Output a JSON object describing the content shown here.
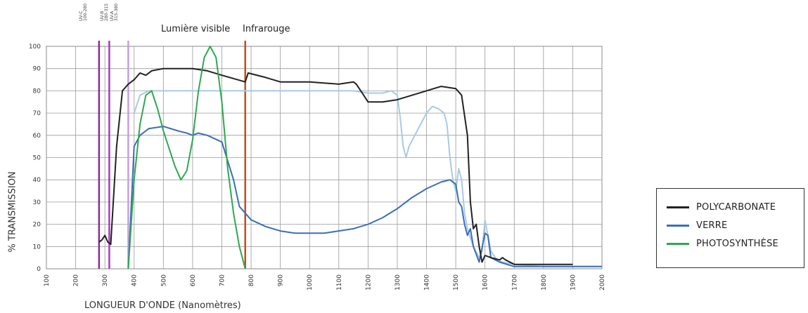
{
  "chart_data": {
    "type": "line",
    "xlabel": "LONGUEUR D'ONDE (Nanomètres)",
    "ylabel": "% TRANSMISSION",
    "xlim": [
      100,
      2000
    ],
    "ylim": [
      0,
      100
    ],
    "x_ticks": [
      100,
      200,
      300,
      400,
      500,
      600,
      700,
      800,
      900,
      1000,
      1100,
      1200,
      1300,
      1400,
      1500,
      1600,
      1700,
      1800,
      1900,
      2000
    ],
    "y_ticks": [
      0,
      10,
      20,
      30,
      40,
      50,
      60,
      70,
      80,
      90,
      100
    ],
    "grid": true,
    "legend_position": "right",
    "annotations": [
      {
        "text": "UV-C",
        "text2": "100-280",
        "x": 280
      },
      {
        "text": "UV-B",
        "text2": "280-315",
        "x": 315
      },
      {
        "text": "UV-A",
        "text2": "315-380",
        "x": 380
      },
      {
        "text": "Lumière visible",
        "x": 560
      },
      {
        "text": "Infrarouge",
        "x": 780
      }
    ],
    "vlines": [
      {
        "x": 280,
        "color": "#8e2a9e"
      },
      {
        "x": 315,
        "color": "#a53dbb"
      },
      {
        "x": 380,
        "color": "#c79de0"
      },
      {
        "x": 780,
        "color": "#c0501c"
      }
    ],
    "series": [
      {
        "name": "POLYCARBONATE",
        "color": "#222222",
        "points": [
          [
            280,
            12
          ],
          [
            290,
            13
          ],
          [
            300,
            15
          ],
          [
            310,
            12
          ],
          [
            320,
            11
          ],
          [
            340,
            55
          ],
          [
            360,
            80
          ],
          [
            380,
            83
          ],
          [
            400,
            85
          ],
          [
            420,
            88
          ],
          [
            440,
            87
          ],
          [
            460,
            89
          ],
          [
            500,
            90
          ],
          [
            600,
            90
          ],
          [
            650,
            89
          ],
          [
            700,
            87
          ],
          [
            780,
            84
          ],
          [
            790,
            88
          ],
          [
            850,
            86
          ],
          [
            900,
            84
          ],
          [
            1000,
            84
          ],
          [
            1100,
            83
          ],
          [
            1150,
            84
          ],
          [
            1160,
            83
          ],
          [
            1180,
            79
          ],
          [
            1200,
            75
          ],
          [
            1250,
            75
          ],
          [
            1300,
            76
          ],
          [
            1400,
            80
          ],
          [
            1450,
            82
          ],
          [
            1500,
            81
          ],
          [
            1520,
            78
          ],
          [
            1540,
            60
          ],
          [
            1550,
            30
          ],
          [
            1560,
            18
          ],
          [
            1570,
            20
          ],
          [
            1580,
            10
          ],
          [
            1590,
            3
          ],
          [
            1600,
            6
          ],
          [
            1620,
            5
          ],
          [
            1650,
            4
          ],
          [
            1660,
            5
          ],
          [
            1670,
            4
          ],
          [
            1700,
            2
          ],
          [
            1800,
            2
          ],
          [
            1900,
            2
          ]
        ]
      },
      {
        "name": "VERRE",
        "color": "#3a6fb7",
        "points": [
          [
            380,
            0
          ],
          [
            400,
            55
          ],
          [
            420,
            60
          ],
          [
            450,
            63
          ],
          [
            500,
            64
          ],
          [
            550,
            62
          ],
          [
            580,
            61
          ],
          [
            600,
            60
          ],
          [
            620,
            61
          ],
          [
            650,
            60
          ],
          [
            700,
            57
          ],
          [
            740,
            40
          ],
          [
            760,
            28
          ],
          [
            800,
            22
          ],
          [
            850,
            19
          ],
          [
            900,
            17
          ],
          [
            950,
            16
          ],
          [
            1000,
            16
          ],
          [
            1050,
            16
          ],
          [
            1100,
            17
          ],
          [
            1150,
            18
          ],
          [
            1200,
            20
          ],
          [
            1250,
            23
          ],
          [
            1300,
            27
          ],
          [
            1350,
            32
          ],
          [
            1400,
            36
          ],
          [
            1450,
            39
          ],
          [
            1480,
            40
          ],
          [
            1500,
            38
          ],
          [
            1510,
            30
          ],
          [
            1520,
            28
          ],
          [
            1530,
            20
          ],
          [
            1540,
            15
          ],
          [
            1550,
            18
          ],
          [
            1560,
            10
          ],
          [
            1580,
            3
          ],
          [
            1600,
            16
          ],
          [
            1610,
            15
          ],
          [
            1620,
            5
          ],
          [
            1650,
            3
          ],
          [
            1700,
            1
          ],
          [
            1800,
            1
          ],
          [
            1900,
            1
          ],
          [
            2000,
            1
          ]
        ]
      },
      {
        "name": "PHOTOSYNTHÈSE",
        "color": "#2fa84f",
        "points": [
          [
            380,
            0
          ],
          [
            400,
            40
          ],
          [
            420,
            65
          ],
          [
            440,
            78
          ],
          [
            460,
            80
          ],
          [
            480,
            72
          ],
          [
            500,
            62
          ],
          [
            540,
            46
          ],
          [
            560,
            40
          ],
          [
            580,
            44
          ],
          [
            600,
            58
          ],
          [
            620,
            80
          ],
          [
            640,
            95
          ],
          [
            660,
            100
          ],
          [
            680,
            95
          ],
          [
            700,
            75
          ],
          [
            720,
            45
          ],
          [
            740,
            25
          ],
          [
            760,
            10
          ],
          [
            780,
            0
          ]
        ]
      },
      {
        "name": "",
        "color": "#a9c9e8",
        "points": [
          [
            400,
            70
          ],
          [
            420,
            78
          ],
          [
            450,
            80
          ],
          [
            500,
            80
          ],
          [
            550,
            80
          ],
          [
            600,
            80
          ],
          [
            650,
            80
          ],
          [
            700,
            80
          ],
          [
            780,
            80
          ],
          [
            850,
            80
          ],
          [
            900,
            80
          ],
          [
            950,
            80
          ],
          [
            1000,
            80
          ],
          [
            1050,
            80
          ],
          [
            1100,
            80
          ],
          [
            1150,
            80
          ],
          [
            1200,
            79
          ],
          [
            1250,
            79
          ],
          [
            1280,
            80
          ],
          [
            1300,
            78
          ],
          [
            1310,
            68
          ],
          [
            1320,
            55
          ],
          [
            1330,
            50
          ],
          [
            1340,
            55
          ],
          [
            1360,
            60
          ],
          [
            1380,
            65
          ],
          [
            1400,
            70
          ],
          [
            1420,
            73
          ],
          [
            1440,
            72
          ],
          [
            1460,
            70
          ],
          [
            1470,
            65
          ],
          [
            1480,
            50
          ],
          [
            1490,
            40
          ],
          [
            1500,
            35
          ],
          [
            1510,
            45
          ],
          [
            1520,
            40
          ],
          [
            1530,
            25
          ],
          [
            1540,
            18
          ],
          [
            1560,
            10
          ],
          [
            1580,
            5
          ],
          [
            1590,
            8
          ],
          [
            1600,
            22
          ],
          [
            1610,
            15
          ],
          [
            1620,
            8
          ],
          [
            1640,
            4
          ],
          [
            1660,
            3
          ],
          [
            1700,
            2
          ],
          [
            1800,
            1
          ],
          [
            1900,
            1
          ],
          [
            2000,
            1
          ]
        ]
      }
    ]
  }
}
